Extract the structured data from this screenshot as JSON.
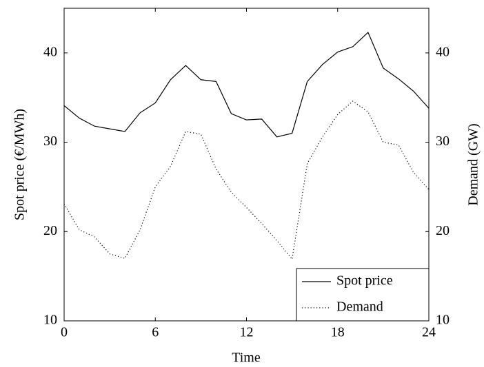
{
  "chart_data": {
    "type": "line",
    "xlabel": "Time",
    "ylabel": "Spot price (€/MWh)",
    "y2label": "Demand (GW)",
    "x": [
      0,
      1,
      2,
      3,
      4,
      5,
      6,
      7,
      8,
      9,
      10,
      11,
      12,
      13,
      14,
      15,
      16,
      17,
      18,
      19,
      20,
      21,
      22,
      23,
      24
    ],
    "series": [
      {
        "name": "Spot price",
        "color": "#000000",
        "dash": "solid",
        "axis": "y",
        "values": [
          34.1,
          32.7,
          31.8,
          31.5,
          31.2,
          33.3,
          34.4,
          37.0,
          38.6,
          37.0,
          36.8,
          33.2,
          32.5,
          32.6,
          30.6,
          31.0,
          36.8,
          38.7,
          40.1,
          40.7,
          42.3,
          38.3,
          37.1,
          35.7,
          33.8
        ]
      },
      {
        "name": "Demand",
        "color": "#000000",
        "dash": "dotted",
        "axis": "y2",
        "values": [
          23.1,
          20.2,
          19.4,
          17.5,
          17.0,
          20.2,
          25.0,
          27.3,
          31.2,
          30.9,
          27.0,
          24.4,
          22.7,
          20.9,
          19.0,
          16.9,
          27.6,
          30.6,
          33.1,
          34.6,
          33.4,
          30.0,
          29.7,
          26.6,
          24.7
        ]
      }
    ],
    "xlim": [
      0,
      24
    ],
    "xticks": [
      0,
      6,
      12,
      18,
      24
    ],
    "ylim": [
      10,
      45
    ],
    "yticks": [
      10,
      20,
      30,
      40
    ],
    "y2lim": [
      10,
      45
    ],
    "y2ticks": [
      10,
      20,
      30,
      40
    ],
    "legend": "lower right",
    "grid": false
  }
}
